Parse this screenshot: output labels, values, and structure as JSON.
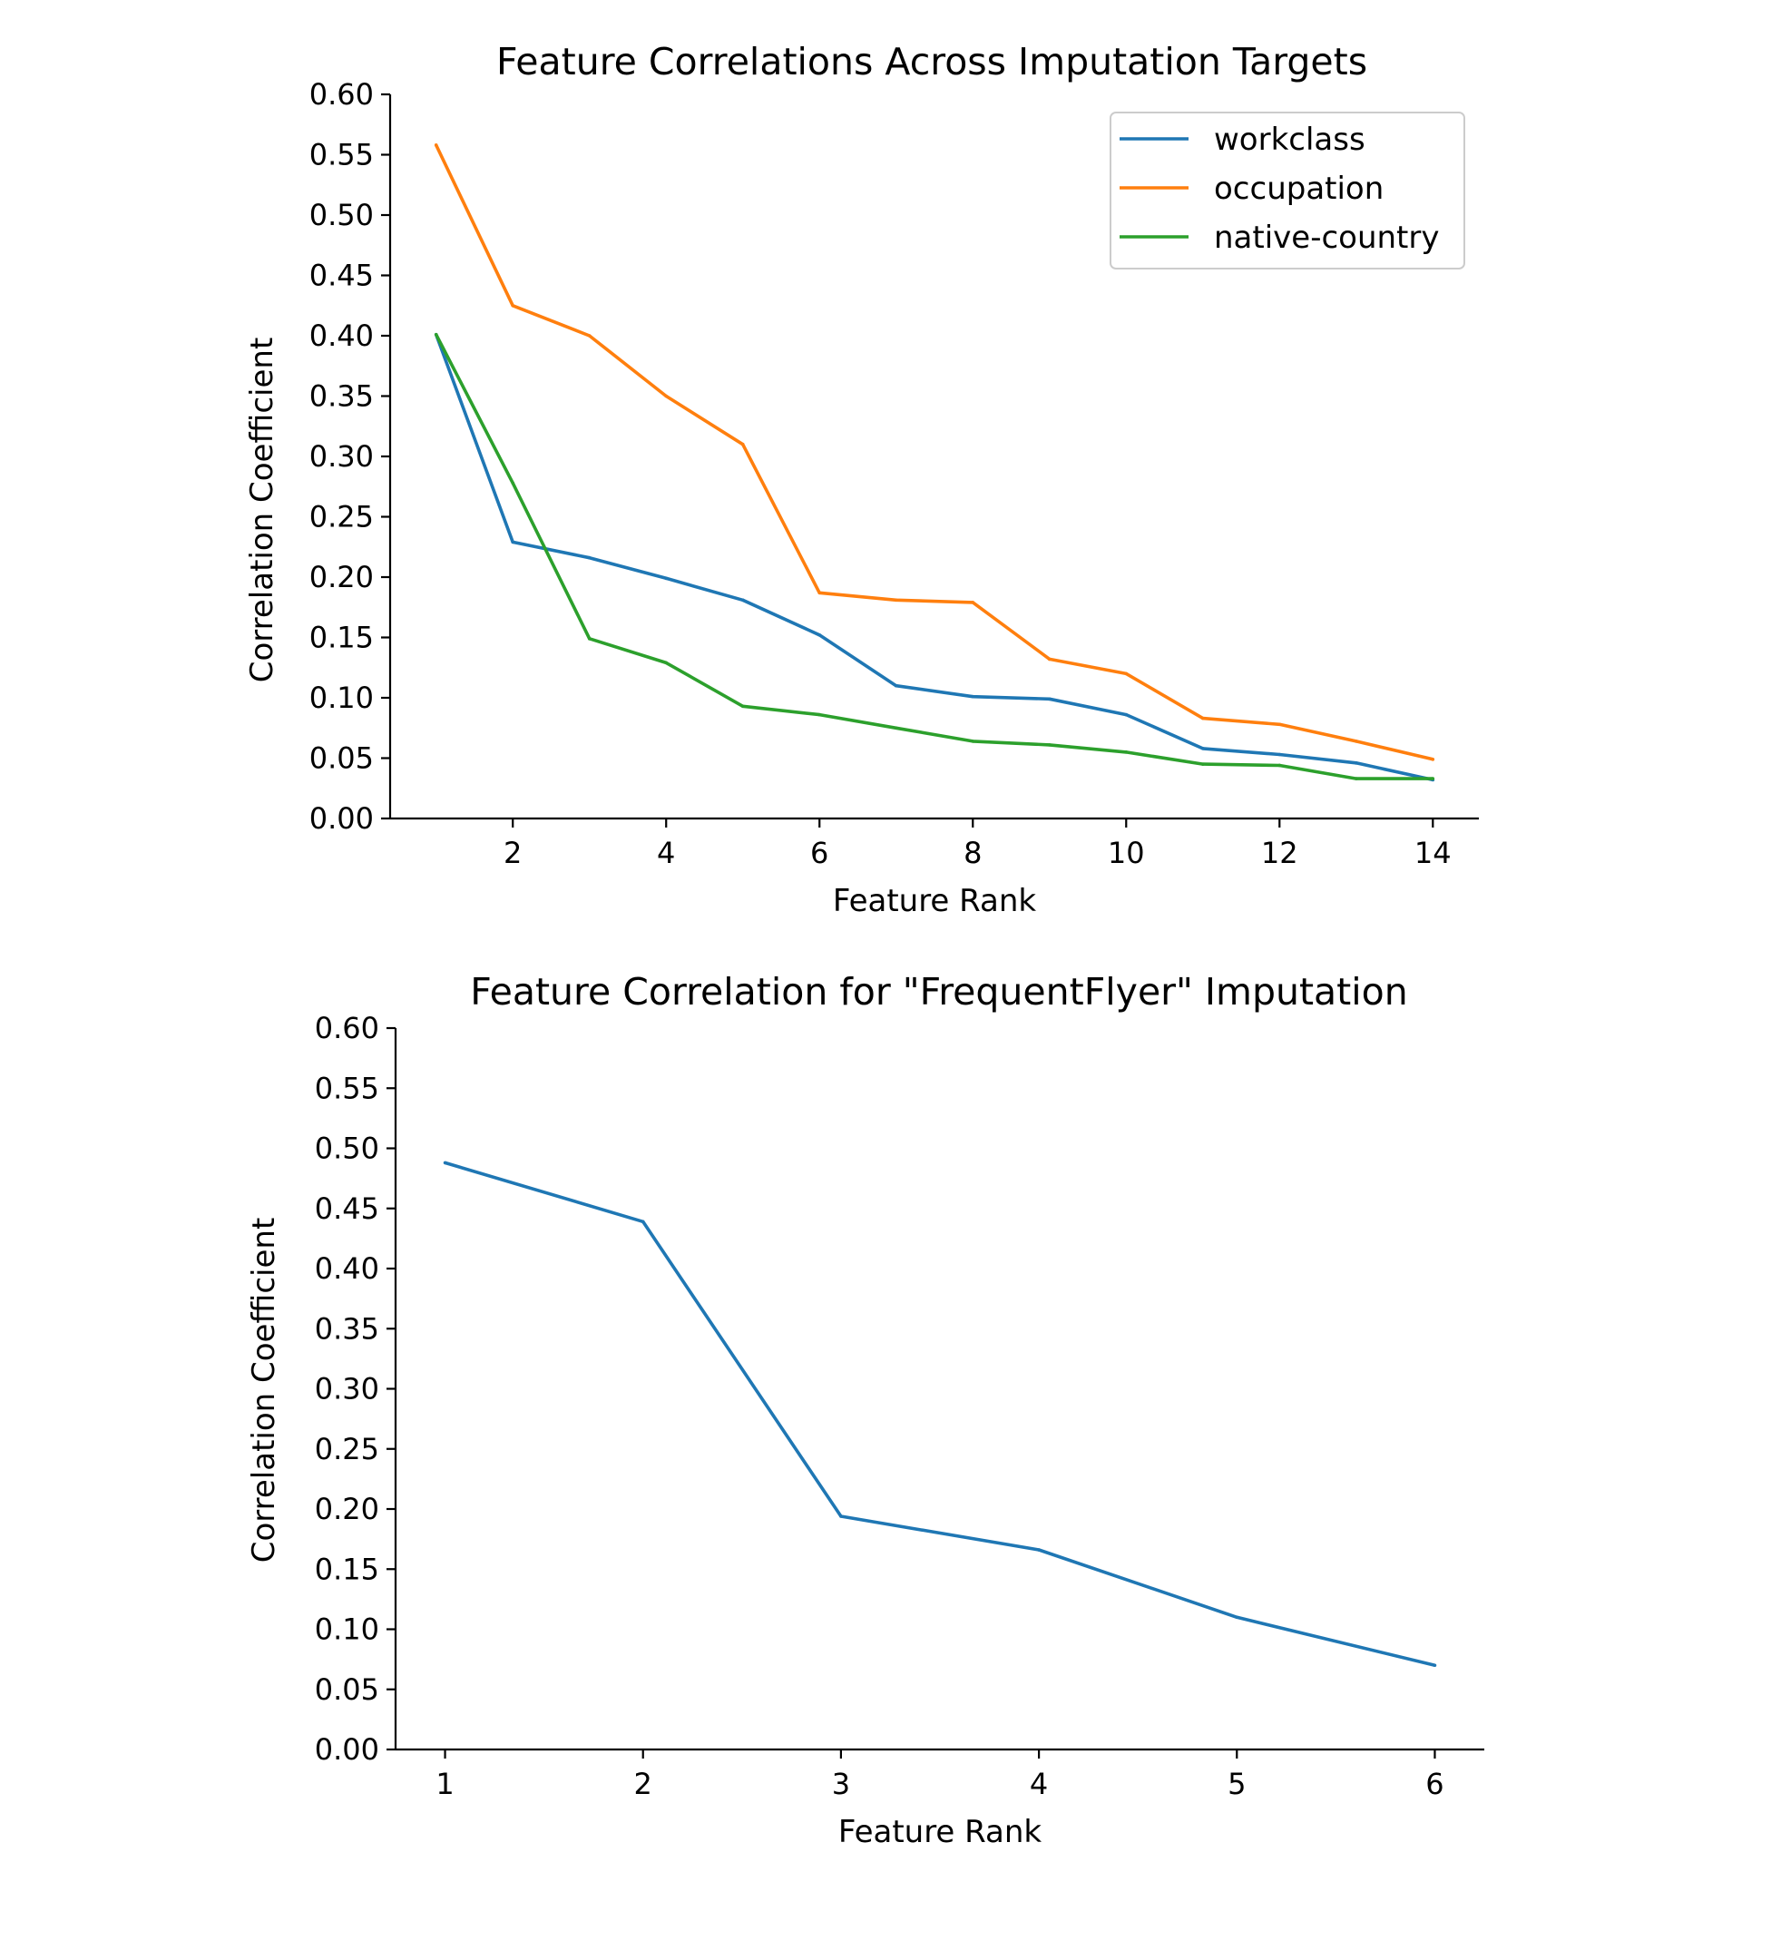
{
  "chart_data": [
    {
      "type": "line",
      "title": "Feature Correlations Across Imputation Targets",
      "xlabel": "Feature Rank",
      "ylabel": "Correlation Coefficient",
      "xlim": [
        0.4,
        14.6
      ],
      "ylim": [
        0,
        0.6
      ],
      "xticks": [
        2,
        4,
        6,
        8,
        10,
        12,
        14
      ],
      "xtick_labels": [
        "2",
        "4",
        "6",
        "8",
        "10",
        "12",
        "14"
      ],
      "yticks": [
        0,
        0.05,
        0.1,
        0.15,
        0.2,
        0.25,
        0.3,
        0.35,
        0.4,
        0.45,
        0.5,
        0.55,
        0.6
      ],
      "ytick_labels": [
        "0.00",
        "0.05",
        "0.10",
        "0.15",
        "0.20",
        "0.25",
        "0.30",
        "0.35",
        "0.40",
        "0.45",
        "0.50",
        "0.55",
        "0.60"
      ],
      "grid": false,
      "legend": "top-right",
      "x": [
        1,
        2,
        3,
        4,
        5,
        6,
        7,
        8,
        9,
        10,
        11,
        12,
        13,
        14
      ],
      "series": [
        {
          "name": "workclass",
          "color": "#1f77b4",
          "values": [
            0.401,
            0.229,
            0.216,
            0.199,
            0.181,
            0.152,
            0.11,
            0.101,
            0.099,
            0.086,
            0.058,
            0.053,
            0.046,
            0.032
          ]
        },
        {
          "name": "occupation",
          "color": "#ff7f0e",
          "values": [
            0.558,
            0.425,
            0.4,
            0.35,
            0.31,
            0.187,
            0.181,
            0.179,
            0.132,
            0.12,
            0.083,
            0.078,
            0.064,
            0.049
          ]
        },
        {
          "name": "native-country",
          "color": "#2ca02c",
          "values": [
            0.401,
            0.278,
            0.149,
            0.129,
            0.093,
            0.086,
            0.075,
            0.064,
            0.061,
            0.055,
            0.045,
            0.044,
            0.033,
            0.033
          ]
        }
      ]
    },
    {
      "type": "line",
      "title": "Feature Correlation for \"FrequentFlyer\" Imputation",
      "xlabel": "Feature Rank",
      "ylabel": "Correlation Coefficient",
      "xlim": [
        0.75,
        6.25
      ],
      "ylim": [
        0,
        0.6
      ],
      "xticks": [
        1,
        2,
        3,
        4,
        5,
        6
      ],
      "xtick_labels": [
        "1",
        "2",
        "3",
        "4",
        "5",
        "6"
      ],
      "yticks": [
        0,
        0.05,
        0.1,
        0.15,
        0.2,
        0.25,
        0.3,
        0.35,
        0.4,
        0.45,
        0.5,
        0.55,
        0.6
      ],
      "ytick_labels": [
        "0.00",
        "0.05",
        "0.10",
        "0.15",
        "0.20",
        "0.25",
        "0.30",
        "0.35",
        "0.40",
        "0.45",
        "0.50",
        "0.55",
        "0.60"
      ],
      "grid": false,
      "legend": "none",
      "x": [
        1,
        2,
        3,
        4,
        5,
        6
      ],
      "series": [
        {
          "color": "#1f77b4",
          "values": [
            0.488,
            0.439,
            0.194,
            0.166,
            0.11,
            0.07
          ]
        }
      ]
    }
  ]
}
